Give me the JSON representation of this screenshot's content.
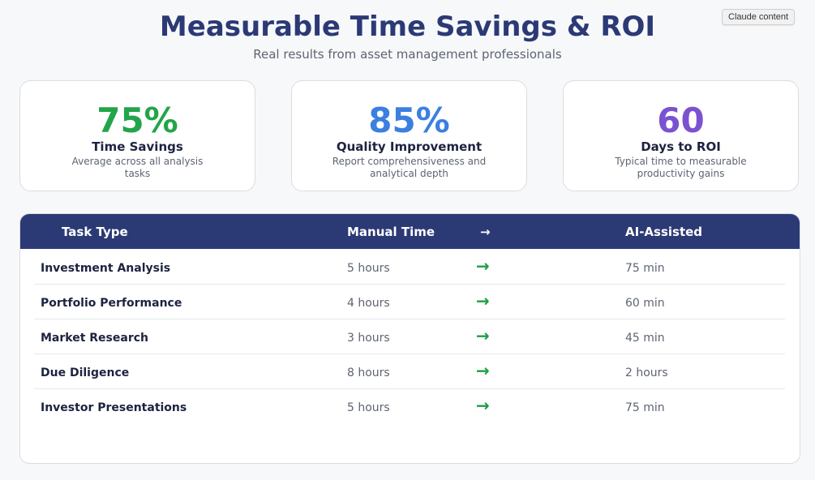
{
  "badge": "Claude content",
  "header": {
    "title": "Measurable Time Savings & ROI",
    "subtitle": "Real results from asset management professionals"
  },
  "stats": [
    {
      "value": "75%",
      "label": "Time Savings",
      "desc": "Average across all analysis tasks",
      "color": "#22a54a"
    },
    {
      "value": "85%",
      "label": "Quality Improvement",
      "desc": "Report comprehensiveness and analytical depth",
      "color": "#3b7fe0"
    },
    {
      "value": "60",
      "label": "Days to ROI",
      "desc": "Typical time to measurable productivity gains",
      "color": "#7a52d1"
    }
  ],
  "table": {
    "columns": {
      "task": "Task Type",
      "manual": "Manual Time",
      "arrow": "→",
      "ai": "AI-Assisted"
    },
    "rows": [
      {
        "task": "Investment Analysis",
        "manual": "5 hours",
        "arrow": "→",
        "ai": "75 min"
      },
      {
        "task": "Portfolio Performance",
        "manual": "4 hours",
        "arrow": "→",
        "ai": "60 min"
      },
      {
        "task": "Market Research",
        "manual": "3 hours",
        "arrow": "→",
        "ai": "45 min"
      },
      {
        "task": "Due Diligence",
        "manual": "8 hours",
        "arrow": "→",
        "ai": "2 hours"
      },
      {
        "task": "Investor Presentations",
        "manual": "5 hours",
        "arrow": "→",
        "ai": "75 min"
      }
    ]
  }
}
